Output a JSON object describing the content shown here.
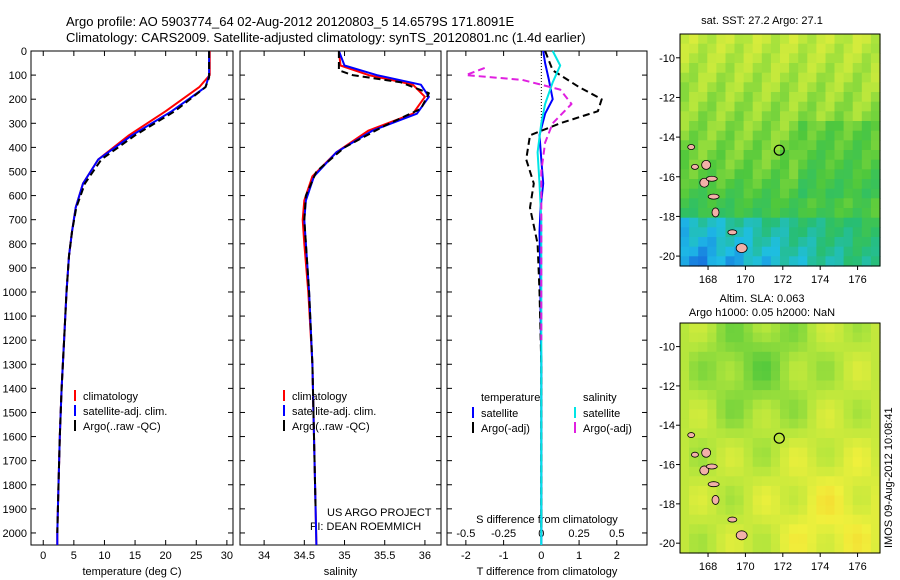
{
  "title_line1": "Argo profile: AO 5903774_64 02-Aug-2012 20120803_5 14.6579S 171.8091E",
  "title_line2": "Climatology: CARS2009. Satellite-adjusted climatology: synTS_20120801.nc (1.4d earlier)",
  "project_line1": "US ARGO PROJECT",
  "project_line2": "PI: DEAN ROEMMICH",
  "imos_stamp": "IMOS 09-Aug-2012 10:08:41",
  "map1_title": "sat. SST: 27.2 Argo: 27.1",
  "map2_title_line1": "Altim. SLA: 0.063",
  "map2_title_line2": "Argo h1000: 0.05 h2000: NaN",
  "colors": {
    "climatology": "#ff0000",
    "satellite": "#0000ff",
    "argo": "#000000",
    "sal_satellite": "#00e5e5",
    "sal_argo": "#e020e0"
  },
  "chart_data": [
    {
      "type": "line",
      "panel": "temperature",
      "xlabel": "temperature (deg C)",
      "xlim": [
        -2,
        31
      ],
      "xticks": [
        0,
        5,
        10,
        15,
        20,
        25,
        30
      ],
      "ylim": [
        0,
        2050
      ],
      "yticks": [
        0,
        100,
        200,
        300,
        400,
        500,
        600,
        700,
        800,
        900,
        1000,
        1100,
        1200,
        1300,
        1400,
        1500,
        1600,
        1700,
        1800,
        1900,
        2000
      ],
      "y_reversed": true,
      "legend": [
        "climatology",
        "satellite-adj. clim.",
        "Argo(..raw -QC)"
      ],
      "series": [
        {
          "name": "climatology",
          "x": [
            27.2,
            27.2,
            25.5,
            20,
            14,
            9,
            6.5,
            5.3,
            4.7,
            4.2,
            3.8,
            3.4,
            3.0,
            2.7,
            2.5,
            2.3,
            2.3
          ],
          "y": [
            0,
            100,
            150,
            250,
            350,
            450,
            550,
            650,
            750,
            850,
            1000,
            1200,
            1400,
            1600,
            1800,
            2000,
            2050
          ]
        },
        {
          "name": "satellite-adj. clim.",
          "x": [
            27.1,
            27.1,
            26.5,
            21,
            14.5,
            9,
            6.5,
            5.3,
            4.7,
            4.2,
            3.8,
            3.4,
            3.0,
            2.7,
            2.5,
            2.3,
            2.3
          ],
          "y": [
            0,
            100,
            150,
            250,
            350,
            450,
            550,
            650,
            750,
            850,
            1000,
            1200,
            1400,
            1600,
            1800,
            2000,
            2050
          ]
        },
        {
          "name": "Argo(..raw -QC)",
          "x": [
            27.1,
            27.1,
            26.5,
            21.5,
            15,
            9.5,
            6.8,
            5.4,
            4.7,
            4.2,
            3.8,
            3.4,
            3.0,
            2.7,
            2.5,
            2.3
          ],
          "y": [
            0,
            110,
            150,
            250,
            350,
            450,
            550,
            650,
            750,
            850,
            1000,
            1200,
            1400,
            1600,
            1800,
            2000
          ]
        }
      ]
    },
    {
      "type": "line",
      "panel": "salinity",
      "xlabel": "salinity",
      "xlim": [
        33.7,
        36.2
      ],
      "xticks": [
        34,
        34.5,
        35,
        35.5,
        36
      ],
      "ylim": [
        0,
        2050
      ],
      "y_reversed": true,
      "legend": [
        "climatology",
        "satellite-adj. clim.",
        "Argo(..raw -QC)"
      ],
      "series": [
        {
          "name": "climatology",
          "x": [
            34.93,
            34.95,
            35.3,
            35.85,
            36.0,
            35.85,
            35.3,
            34.9,
            34.6,
            34.5,
            34.48,
            34.5,
            34.55,
            34.6,
            34.62,
            34.64,
            34.65
          ],
          "y": [
            0,
            60,
            100,
            140,
            190,
            260,
            330,
            420,
            520,
            620,
            700,
            800,
            1000,
            1300,
            1600,
            1900,
            2050
          ]
        },
        {
          "name": "satellite-adj. clim.",
          "x": [
            34.93,
            35.0,
            35.4,
            35.95,
            36.05,
            35.9,
            35.35,
            34.9,
            34.62,
            34.52,
            34.5,
            34.52,
            34.56,
            34.6,
            34.62,
            34.64,
            34.65
          ],
          "y": [
            0,
            60,
            100,
            140,
            190,
            260,
            330,
            420,
            520,
            620,
            700,
            800,
            1000,
            1300,
            1600,
            1900,
            2050
          ]
        },
        {
          "name": "Argo(..raw -QC)",
          "x": [
            34.93,
            34.93,
            35.1,
            35.7,
            36.05,
            35.95,
            35.5,
            35.0,
            34.65,
            34.52,
            34.5,
            34.52,
            34.56,
            34.6,
            34.62,
            34.64
          ],
          "y": [
            0,
            80,
            100,
            130,
            175,
            240,
            310,
            400,
            500,
            600,
            700,
            800,
            1000,
            1300,
            1600,
            1900
          ]
        }
      ]
    },
    {
      "type": "line",
      "panel": "difference",
      "xlabel": "T difference from climatology",
      "xlabel_top": "S difference from climatology",
      "xlim": [
        -2.5,
        2.8
      ],
      "xticks": [
        -2,
        -1,
        0,
        1,
        2
      ],
      "sal_xticks": [
        -0.5,
        -0.25,
        0,
        0.25,
        0.5
      ],
      "ylim": [
        0,
        2050
      ],
      "y_reversed": true,
      "legend_headers": [
        "temperature",
        "salinity"
      ],
      "legend": [
        "satellite",
        "Argo(-adj)",
        "satellite",
        "Argo(-adj)"
      ],
      "series": [
        {
          "name": "satellite",
          "group": "temperature",
          "x": [
            0.05,
            0.1,
            0.2,
            0.3,
            0.1,
            -0.05,
            0.0,
            0.05,
            -0.02,
            -0.05,
            -0.03,
            -0.02,
            0.0,
            0.0,
            0.0,
            0.0
          ],
          "y": [
            0,
            50,
            120,
            200,
            260,
            350,
            450,
            550,
            650,
            750,
            900,
            1100,
            1300,
            1600,
            1800,
            2050
          ]
        },
        {
          "name": "Argo(-adj)",
          "group": "temperature",
          "x": [
            0.1,
            0.3,
            1.0,
            1.6,
            1.5,
            0.5,
            -0.3,
            -0.4,
            -0.2,
            -0.3,
            -0.1,
            -0.05,
            0.0,
            0.0,
            0.0
          ],
          "y": [
            0,
            80,
            150,
            200,
            250,
            300,
            350,
            450,
            550,
            650,
            800,
            1000,
            1300,
            1600,
            2000
          ]
        },
        {
          "name": "satellite",
          "group": "salinity",
          "x": [
            0.3,
            0.5,
            0.3,
            0.1,
            0.0,
            -0.1,
            -0.05,
            0.0,
            0.0,
            0.0,
            0.0
          ],
          "y": [
            0,
            60,
            130,
            220,
            300,
            420,
            550,
            700,
            1000,
            1500,
            2050
          ]
        },
        {
          "name": "Argo(-adj)",
          "group": "salinity",
          "x": [
            -1.5,
            -2.0,
            -0.5,
            0.5,
            0.8,
            0.3,
            0.1,
            0.0,
            0.0,
            0.0
          ],
          "y": [
            70,
            100,
            120,
            160,
            220,
            300,
            380,
            500,
            800,
            1200
          ]
        }
      ]
    },
    {
      "type": "heatmap",
      "panel": "map_sst",
      "xlim": [
        166.5,
        177.2
      ],
      "ylim": [
        -20.5,
        -8.8
      ],
      "xticks": [
        168,
        170,
        172,
        174,
        176
      ],
      "yticks": [
        -10,
        -12,
        -14,
        -16,
        -18,
        -20
      ],
      "marker": {
        "lon": 171.81,
        "lat": -14.66
      }
    },
    {
      "type": "heatmap",
      "panel": "map_sla",
      "xlim": [
        166.5,
        177.2
      ],
      "ylim": [
        -20.5,
        -8.8
      ],
      "xticks": [
        168,
        170,
        172,
        174,
        176
      ],
      "yticks": [
        -10,
        -12,
        -14,
        -16,
        -18,
        -20
      ],
      "marker": {
        "lon": 171.81,
        "lat": -14.66
      }
    }
  ]
}
